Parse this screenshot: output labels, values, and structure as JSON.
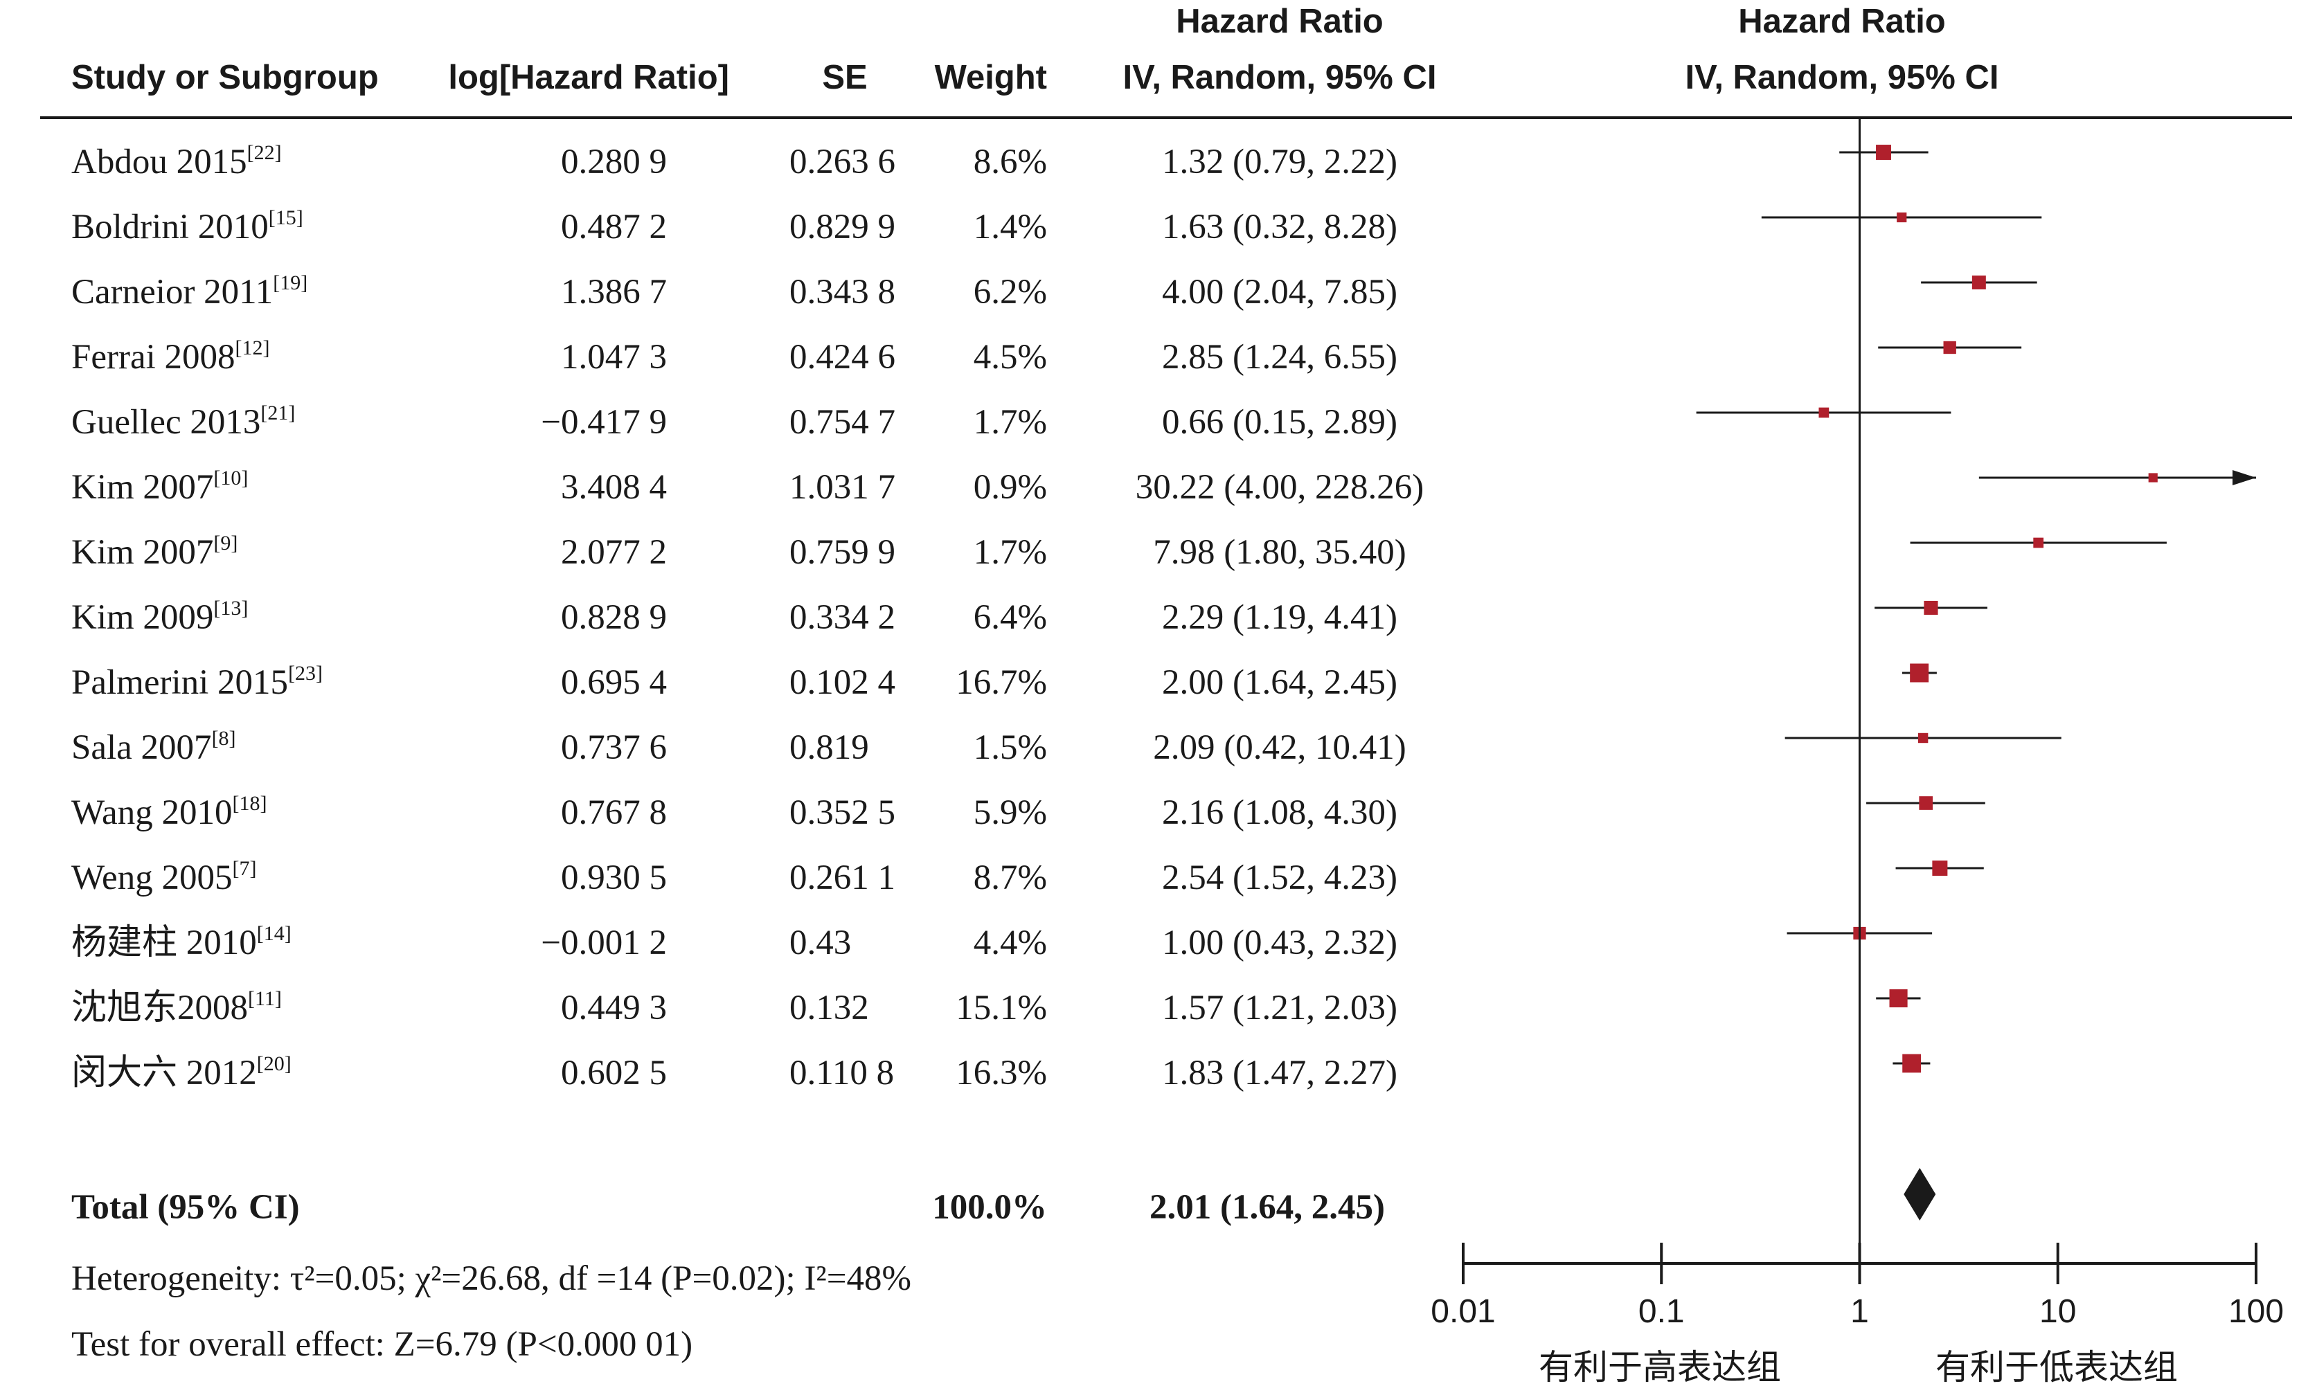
{
  "headers": {
    "study": "Study or Subgroup",
    "loghr": "log[Hazard Ratio]",
    "se": "SE",
    "weight": "Weight",
    "hr_title": "Hazard Ratio",
    "hr_method": "IV, Random, 95% CI",
    "plot_title": "Hazard Ratio",
    "plot_method": "IV, Random, 95% CI"
  },
  "total": {
    "label": "Total (95% CI)",
    "weight": "100.0%",
    "ci_text": "2.01 (1.64, 2.45)"
  },
  "footer": {
    "heterogeneity": "Heterogeneity: τ²=0.05; χ²=26.68, df =14 (P=0.02); I²=48%",
    "overall": "Test for overall effect: Z=6.79 (P<0.000 01)"
  },
  "axis": {
    "scale": "log",
    "range": [
      0.01,
      100
    ],
    "ticks": [
      "0.01",
      "0.1",
      "1",
      "10",
      "100"
    ],
    "tick_values": [
      0.01,
      0.1,
      1,
      10,
      100
    ],
    "favours_left": "有利于高表达组",
    "favours_right": "有利于低表达组"
  },
  "colors": {
    "marker": "#b0202c",
    "line": "#1a1a1a",
    "diamond": "#1a1a1a"
  },
  "chart_data": {
    "type": "forest",
    "x_scale": "log",
    "xlim": [
      0.01,
      100
    ],
    "null_value": 1,
    "studies": [
      {
        "name": "Abdou 2015",
        "ref": "[22]",
        "loghr": "0.280 9",
        "se": "0.263 6",
        "weight": "8.6%",
        "ci_text": "1.32 (0.79, 2.22)",
        "hr": 1.32,
        "lo": 0.79,
        "hi": 2.22,
        "w": 8.6
      },
      {
        "name": "Boldrini 2010",
        "ref": "[15]",
        "loghr": "0.487 2",
        "se": "0.829 9",
        "weight": "1.4%",
        "ci_text": "1.63 (0.32, 8.28)",
        "hr": 1.63,
        "lo": 0.32,
        "hi": 8.28,
        "w": 1.4
      },
      {
        "name": "Carneior 2011",
        "ref": "[19]",
        "loghr": "1.386 7",
        "se": "0.343 8",
        "weight": "6.2%",
        "ci_text": "4.00 (2.04, 7.85)",
        "hr": 4.0,
        "lo": 2.04,
        "hi": 7.85,
        "w": 6.2
      },
      {
        "name": "Ferrai 2008",
        "ref": "[12]",
        "loghr": "1.047 3",
        "se": "0.424 6",
        "weight": "4.5%",
        "ci_text": "2.85 (1.24, 6.55)",
        "hr": 2.85,
        "lo": 1.24,
        "hi": 6.55,
        "w": 4.5
      },
      {
        "name": "Guellec 2013",
        "ref": "[21]",
        "loghr": "−0.417 9",
        "se": "0.754 7",
        "weight": "1.7%",
        "ci_text": "0.66 (0.15, 2.89)",
        "hr": 0.66,
        "lo": 0.15,
        "hi": 2.89,
        "w": 1.7
      },
      {
        "name": "Kim  2007",
        "ref": "[10]",
        "loghr": "3.408 4",
        "se": "1.031 7",
        "weight": "0.9%",
        "ci_text": "30.22 (4.00, 228.26)",
        "hr": 30.22,
        "lo": 4.0,
        "hi": 228.26,
        "w": 0.9
      },
      {
        "name": "Kim 2007",
        "ref": "[9]",
        "loghr": "2.077 2",
        "se": "0.759 9",
        "weight": "1.7%",
        "ci_text": "7.98 (1.80, 35.40)",
        "hr": 7.98,
        "lo": 1.8,
        "hi": 35.4,
        "w": 1.7
      },
      {
        "name": "Kim 2009",
        "ref": "[13]",
        "loghr": "0.828 9",
        "se": "0.334 2",
        "weight": "6.4%",
        "ci_text": "2.29 (1.19, 4.41)",
        "hr": 2.29,
        "lo": 1.19,
        "hi": 4.41,
        "w": 6.4
      },
      {
        "name": "Palmerini 2015",
        "ref": "[23]",
        "loghr": "0.695 4",
        "se": "0.102 4",
        "weight": "16.7%",
        "ci_text": "2.00 (1.64, 2.45)",
        "hr": 2.0,
        "lo": 1.64,
        "hi": 2.45,
        "w": 16.7
      },
      {
        "name": "Sala 2007",
        "ref": "[8]",
        "loghr": "0.737 6",
        "se": "0.819",
        "weight": "1.5%",
        "ci_text": "2.09 (0.42, 10.41)",
        "hr": 2.09,
        "lo": 0.42,
        "hi": 10.41,
        "w": 1.5
      },
      {
        "name": "Wang 2010",
        "ref": "[18]",
        "loghr": "0.767 8",
        "se": "0.352 5",
        "weight": "5.9%",
        "ci_text": "2.16 (1.08, 4.30)",
        "hr": 2.16,
        "lo": 1.08,
        "hi": 4.3,
        "w": 5.9
      },
      {
        "name": "Weng 2005",
        "ref": "[7]",
        "loghr": "0.930 5",
        "se": "0.261 1",
        "weight": "8.7%",
        "ci_text": "2.54 (1.52, 4.23)",
        "hr": 2.54,
        "lo": 1.52,
        "hi": 4.23,
        "w": 8.7
      },
      {
        "name": "杨建柱 2010",
        "ref": "[14]",
        "loghr": "−0.001 2",
        "se": "0.43",
        "weight": "4.4%",
        "ci_text": "1.00 (0.43, 2.32)",
        "hr": 1.0,
        "lo": 0.43,
        "hi": 2.32,
        "w": 4.4
      },
      {
        "name": "沈旭东2008",
        "ref": "[11]",
        "loghr": "0.449 3",
        "se": "0.132",
        "weight": "15.1%",
        "ci_text": "1.57 (1.21, 2.03)",
        "hr": 1.57,
        "lo": 1.21,
        "hi": 2.03,
        "w": 15.1
      },
      {
        "name": "闵大六 2012",
        "ref": "[20]",
        "loghr": "0.602 5",
        "se": "0.110 8",
        "weight": "16.3%",
        "ci_text": "1.83 (1.47, 2.27)",
        "hr": 1.83,
        "lo": 1.47,
        "hi": 2.27,
        "w": 16.3
      }
    ],
    "pooled": {
      "hr": 2.01,
      "lo": 1.64,
      "hi": 2.45
    }
  }
}
